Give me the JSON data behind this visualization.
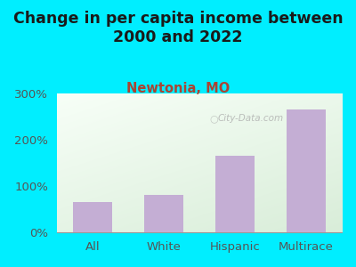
{
  "title": "Change in per capita income between\n2000 and 2022",
  "subtitle": "Newtonia, MO",
  "categories": [
    "All",
    "White",
    "Hispanic",
    "Multirace"
  ],
  "values": [
    65,
    80,
    165,
    265
  ],
  "bar_color": "#c4aed4",
  "title_fontsize": 12.5,
  "subtitle_fontsize": 10.5,
  "tick_fontsize": 9.5,
  "background_color": "#00eeff",
  "plot_bg_color_topleft": "#d8ecd0",
  "plot_bg_color_bottomright": "#f8fff8",
  "ylim": [
    0,
    300
  ],
  "yticks": [
    0,
    100,
    200,
    300
  ],
  "title_color": "#1a1a1a",
  "subtitle_color": "#aa4433",
  "tick_color": "#555555",
  "watermark": "City-Data.com"
}
